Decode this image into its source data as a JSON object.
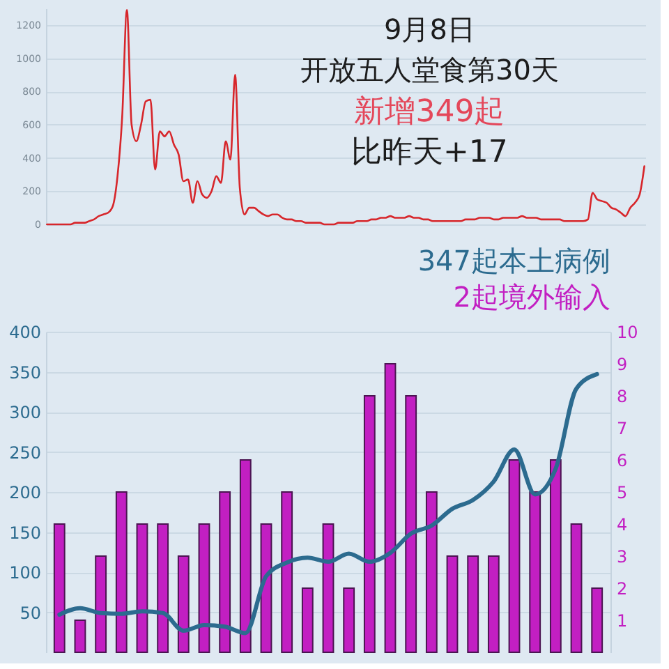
{
  "chart_data": [
    {
      "type": "line",
      "categories": [
        null,
        null,
        null,
        null,
        null,
        null,
        null,
        null,
        null,
        null,
        null,
        null,
        null,
        null,
        null,
        null,
        null,
        null,
        null,
        null,
        null,
        null,
        null,
        null,
        null,
        null,
        null,
        null,
        null,
        null,
        null,
        null,
        null,
        null,
        null,
        null,
        null,
        null,
        null,
        null,
        null,
        null,
        null,
        null,
        null,
        null,
        null,
        null,
        null,
        null,
        null,
        null,
        null,
        null,
        null,
        null,
        null,
        null,
        null,
        null,
        null,
        null,
        null,
        null,
        null,
        null,
        null,
        null,
        null,
        null,
        null,
        null,
        null,
        null,
        null,
        null,
        null,
        null,
        null,
        null,
        null,
        null,
        null,
        null,
        null,
        null,
        null,
        null,
        null,
        null,
        null,
        null,
        null,
        null,
        null,
        null,
        null,
        null,
        null,
        null,
        null,
        null,
        null,
        null,
        null,
        null,
        null,
        null,
        null,
        null,
        null,
        null,
        null,
        null,
        null,
        null,
        null,
        null,
        null,
        null,
        null,
        null,
        null,
        null,
        null,
        null,
        null,
        null
      ],
      "series": [
        {
          "color": "#d7262b",
          "values": [
            0,
            0,
            0,
            0,
            0,
            0,
            10,
            10,
            10,
            20,
            30,
            50,
            60,
            70,
            110,
            290,
            650,
            1290,
            600,
            500,
            600,
            740,
            750,
            330,
            560,
            530,
            560,
            480,
            420,
            260,
            270,
            130,
            260,
            180,
            160,
            200,
            290,
            250,
            500,
            390,
            900,
            220,
            60,
            100,
            100,
            80,
            60,
            50,
            60,
            60,
            40,
            30,
            30,
            20,
            20,
            10,
            10,
            10,
            10,
            0,
            0,
            0,
            10,
            10,
            10,
            10,
            20,
            20,
            20,
            30,
            30,
            40,
            40,
            50,
            40,
            40,
            40,
            50,
            40,
            40,
            30,
            30,
            20,
            20,
            20,
            20,
            20,
            20,
            20,
            30,
            30,
            30,
            40,
            40,
            40,
            30,
            30,
            40,
            40,
            40,
            40,
            50,
            40,
            40,
            40,
            30,
            30,
            30,
            30,
            30,
            20,
            20,
            20,
            20,
            20,
            30,
            190,
            150,
            140,
            130,
            100,
            90,
            70,
            50,
            100,
            130,
            180,
            350
          ]
        }
      ],
      "ylim": [
        0,
        1300
      ],
      "yticks": [
        0,
        200,
        400,
        600,
        800,
        1000,
        1200
      ],
      "grid": "y",
      "annotations": [
        "9月8日",
        "开放五人堂食第30天",
        "新增349起",
        "比昨天+17"
      ]
    },
    {
      "type": "bar",
      "categories": [
        null,
        null,
        null,
        null,
        null,
        null,
        null,
        null,
        null,
        null,
        null,
        null,
        null,
        null,
        null,
        null,
        null,
        null,
        null,
        null,
        null,
        null,
        null,
        null,
        null,
        null,
        null
      ],
      "series": [
        {
          "name": "347起本土病例",
          "type": "line",
          "color": "#2c6b8f",
          "values": [
            47,
            55,
            49,
            48,
            51,
            49,
            27,
            34,
            32,
            24,
            95,
            112,
            118,
            113,
            123,
            113,
            124,
            148,
            158,
            179,
            190,
            213,
            253,
            197,
            229,
            329,
            347
          ]
        },
        {
          "name": "2起境外输入",
          "type": "bar",
          "axis": "y2",
          "color": "#c21fc2",
          "values": [
            4,
            1,
            3,
            5,
            4,
            4,
            3,
            4,
            5,
            6,
            4,
            5,
            2,
            4,
            2,
            8,
            9,
            8,
            5,
            3,
            3,
            3,
            6,
            5,
            6,
            4,
            2
          ]
        }
      ],
      "ylim": [
        0,
        400
      ],
      "yticks": [
        50,
        100,
        150,
        200,
        250,
        300,
        350,
        400
      ],
      "y2lim": [
        0,
        10
      ],
      "y2ticks": [
        1,
        2,
        3,
        4,
        5,
        6,
        7,
        8,
        9,
        10
      ],
      "legend": "top right",
      "grid": "y"
    }
  ]
}
